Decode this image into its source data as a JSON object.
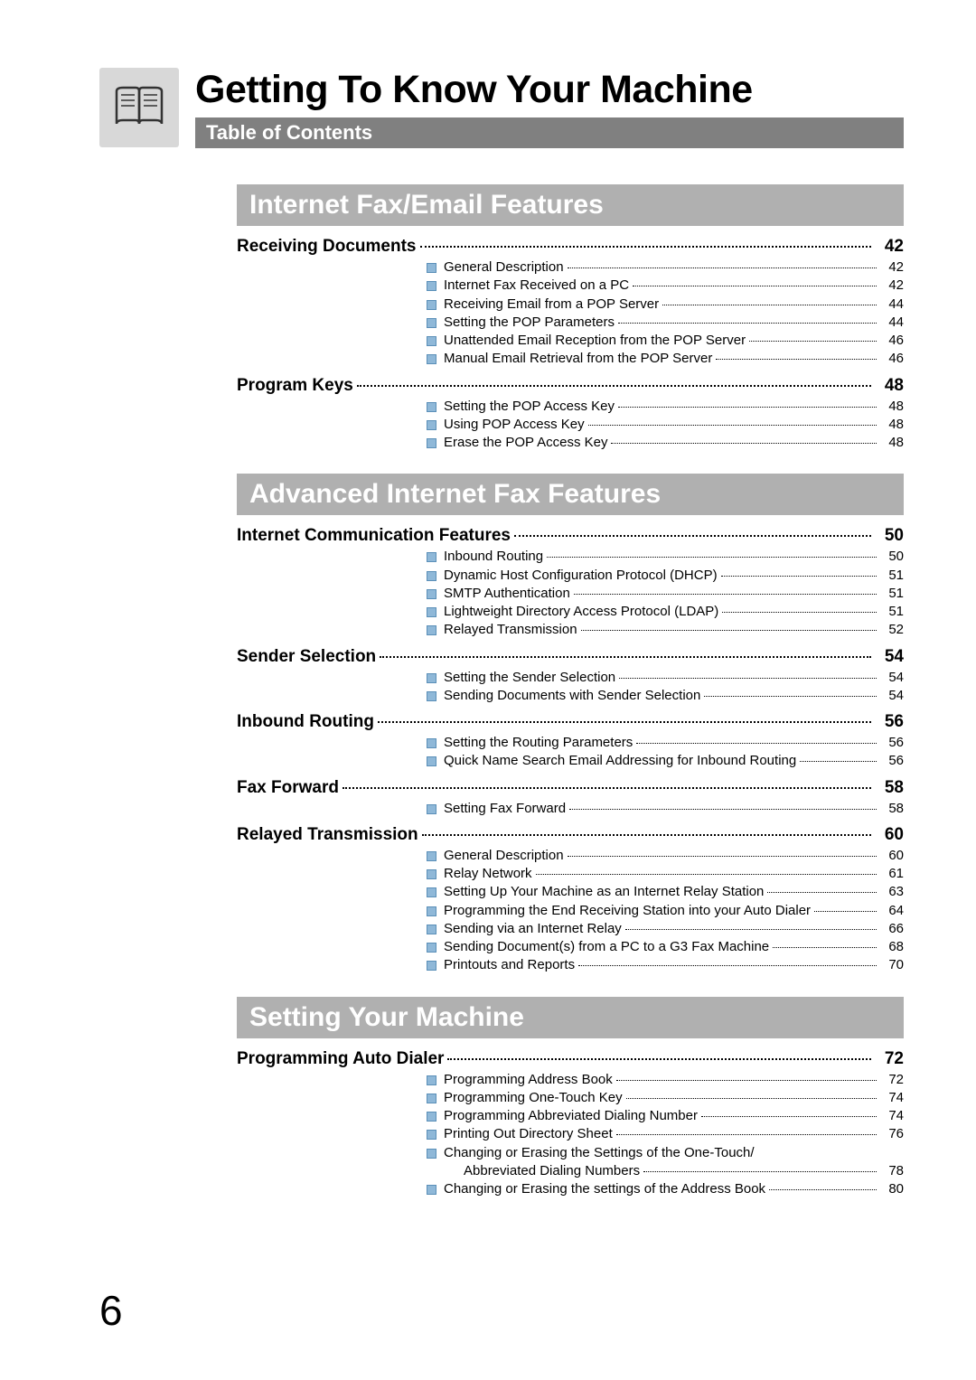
{
  "header": {
    "title": "Getting To Know Your Machine",
    "subtitle": "Table of Contents"
  },
  "pageNumber": "6",
  "sections": [
    {
      "title": "Internet Fax/Email Features",
      "topics": [
        {
          "label": "Receiving Documents",
          "page": "42",
          "items": [
            {
              "label": "General Description",
              "page": "42"
            },
            {
              "label": "Internet Fax Received on a PC",
              "page": "42"
            },
            {
              "label": "Receiving Email from a POP Server",
              "page": "44"
            },
            {
              "label": "Setting the POP Parameters",
              "page": "44"
            },
            {
              "label": "Unattended Email Reception from the POP Server",
              "page": "46"
            },
            {
              "label": "Manual Email Retrieval from the POP Server",
              "page": "46"
            }
          ]
        },
        {
          "label": "Program Keys",
          "page": "48",
          "items": [
            {
              "label": "Setting the POP Access Key",
              "page": "48"
            },
            {
              "label": "Using POP Access Key",
              "page": "48"
            },
            {
              "label": "Erase the POP Access Key",
              "page": "48"
            }
          ]
        }
      ]
    },
    {
      "title": "Advanced Internet Fax Features",
      "topics": [
        {
          "label": "Internet Communication Features",
          "page": "50",
          "items": [
            {
              "label": "Inbound Routing",
              "page": "50"
            },
            {
              "label": "Dynamic Host Configuration Protocol (DHCP)",
              "page": "51"
            },
            {
              "label": "SMTP Authentication",
              "page": "51"
            },
            {
              "label": "Lightweight Directory Access Protocol (LDAP)",
              "page": "51"
            },
            {
              "label": "Relayed Transmission",
              "page": "52"
            }
          ]
        },
        {
          "label": "Sender Selection",
          "page": "54",
          "items": [
            {
              "label": "Setting the Sender Selection",
              "page": "54"
            },
            {
              "label": "Sending Documents with Sender Selection",
              "page": "54"
            }
          ]
        },
        {
          "label": "Inbound Routing",
          "page": "56",
          "items": [
            {
              "label": "Setting the Routing Parameters",
              "page": "56"
            },
            {
              "label": "Quick Name Search Email Addressing for Inbound Routing",
              "page": "56"
            }
          ]
        },
        {
          "label": "Fax Forward",
          "page": "58",
          "items": [
            {
              "label": "Setting Fax Forward",
              "page": "58"
            }
          ]
        },
        {
          "label": "Relayed Transmission",
          "page": "60",
          "items": [
            {
              "label": "General Description",
              "page": "60"
            },
            {
              "label": "Relay Network",
              "page": "61"
            },
            {
              "label": "Setting Up Your Machine as an Internet Relay Station",
              "page": "63"
            },
            {
              "label": "Programming the End Receiving Station into your Auto Dialer",
              "page": "64"
            },
            {
              "label": "Sending via an Internet Relay",
              "page": "66"
            },
            {
              "label": "Sending Document(s) from a PC to a G3 Fax Machine",
              "page": "68"
            },
            {
              "label": "Printouts and Reports",
              "page": "70"
            }
          ]
        }
      ]
    },
    {
      "title": "Setting Your Machine",
      "topics": [
        {
          "label": "Programming Auto Dialer",
          "page": "72",
          "items": [
            {
              "label": "Programming Address Book",
              "page": "72"
            },
            {
              "label": "Programming One-Touch Key",
              "page": "74"
            },
            {
              "label": "Programming Abbreviated Dialing Number",
              "page": "74"
            },
            {
              "label": "Printing Out Directory Sheet",
              "page": "76"
            },
            {
              "label": "Changing or Erasing the Settings of the One-Touch/",
              "cont": "Abbreviated Dialing Numbers",
              "page": "78"
            },
            {
              "label": "Changing or Erasing the settings of the Address Book",
              "page": "80"
            }
          ]
        }
      ]
    }
  ],
  "style": {
    "bullet_color": "#8fb8d8",
    "bullet_border": "#5a8fb8",
    "section_bg": "#b0b0b0",
    "subtitle_bg": "#808080",
    "icon_bg": "#d8d8d8"
  }
}
